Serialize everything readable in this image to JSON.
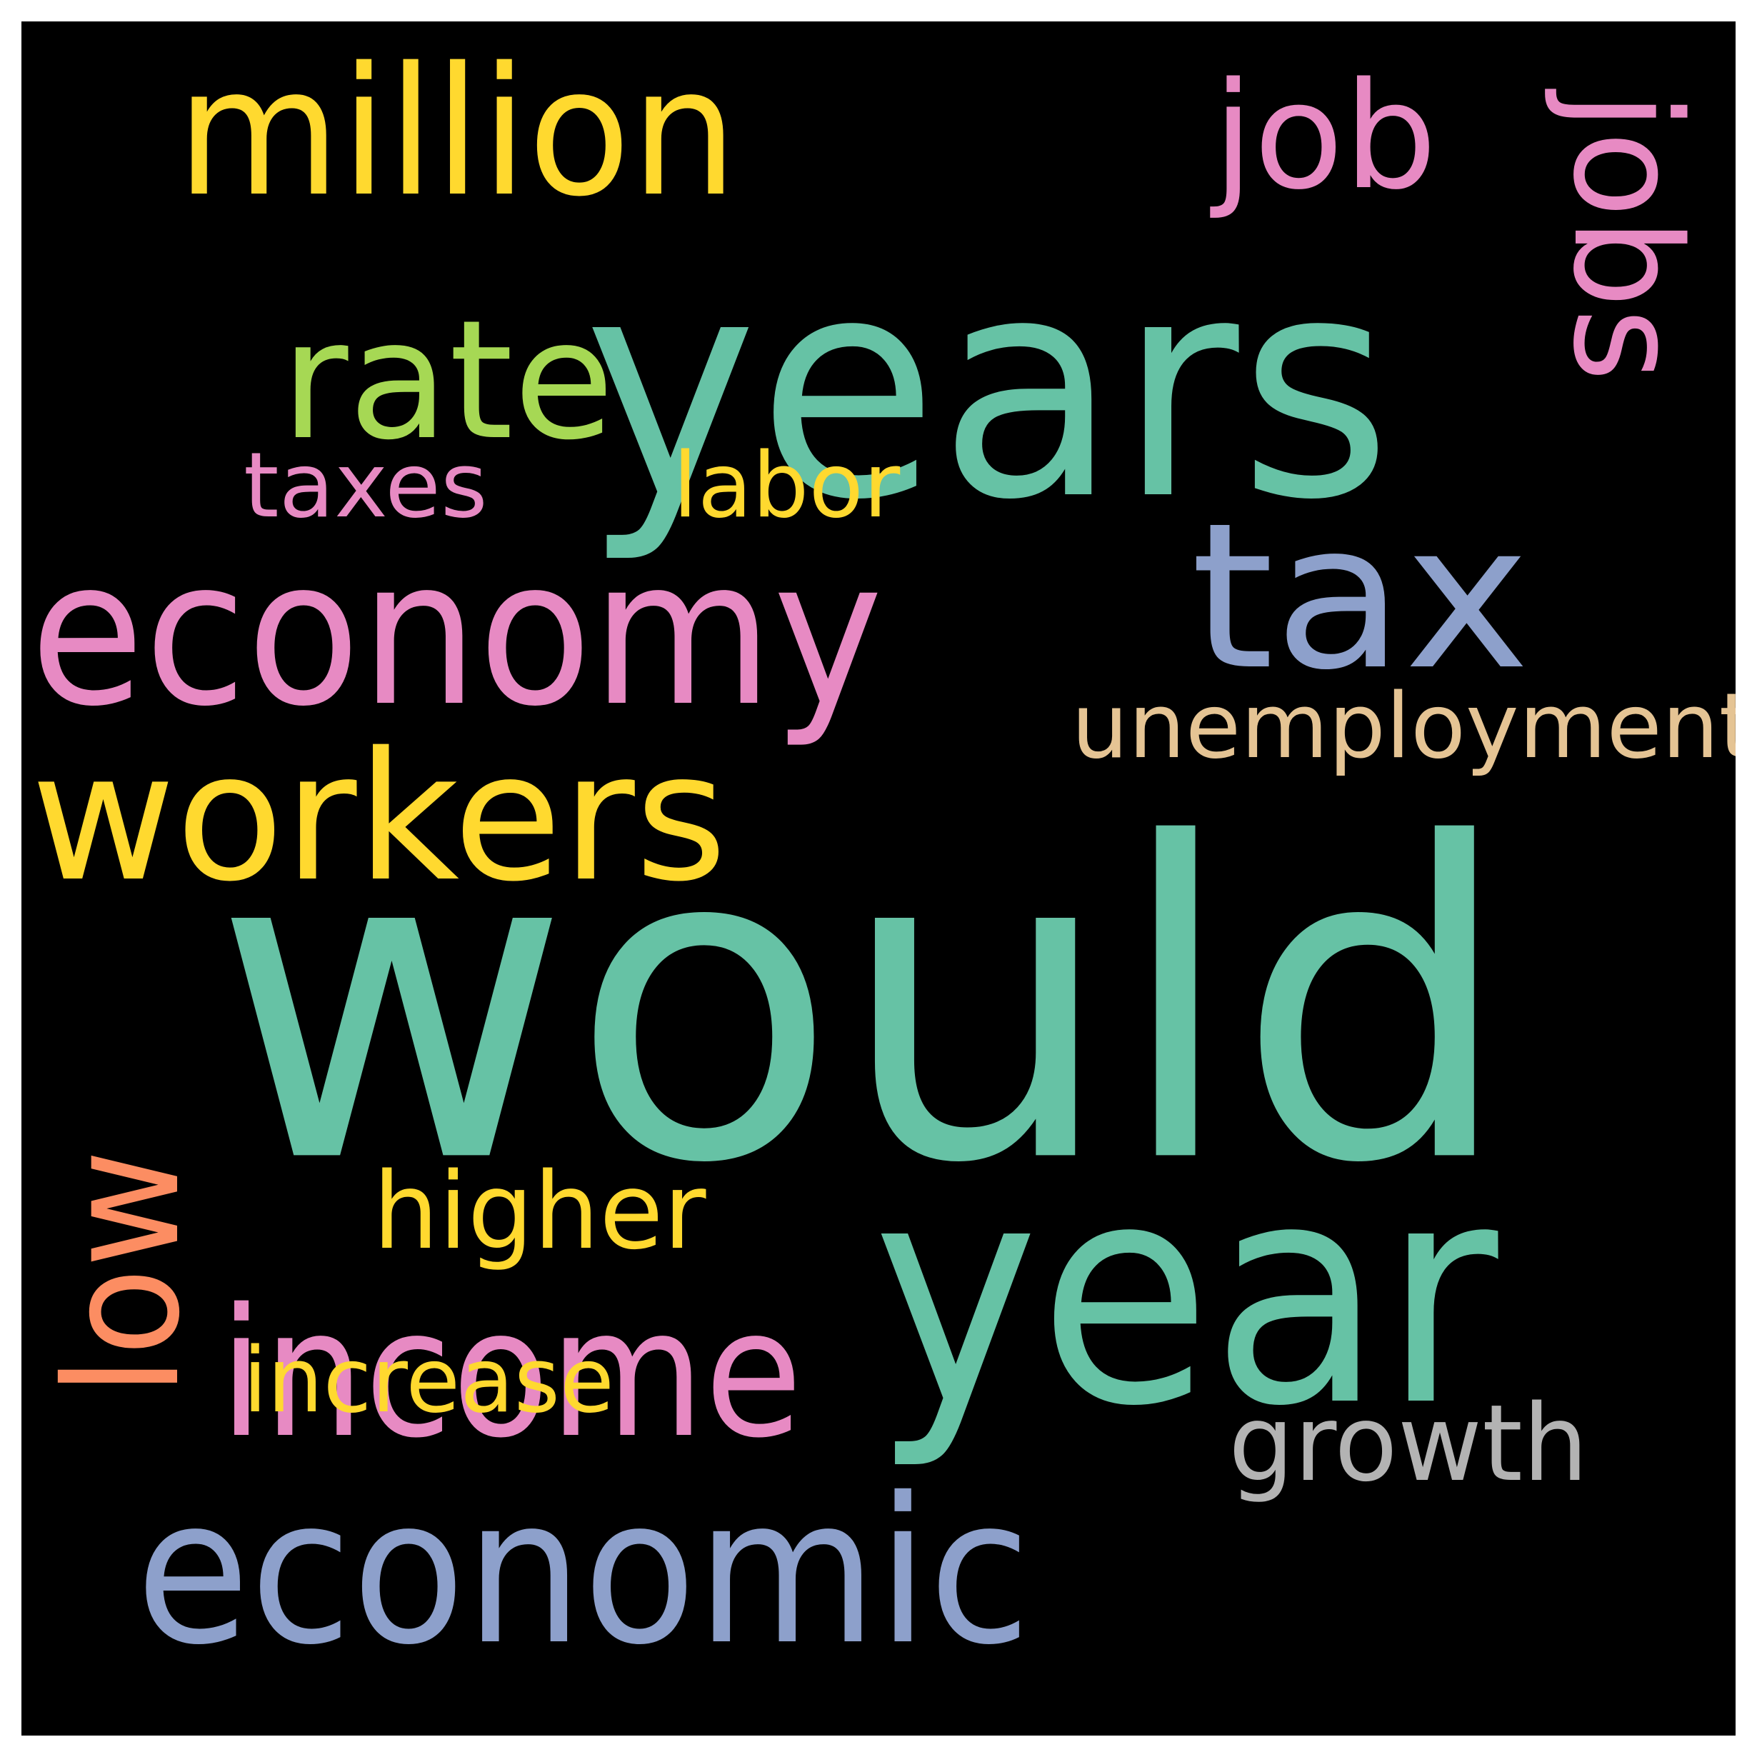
{
  "background_color": "#000000",
  "words": [
    {
      "text": "would",
      "color": "#66c2a5"
    },
    {
      "text": "years",
      "color": "#66c2a5"
    },
    {
      "text": "year",
      "color": "#66c2a5"
    },
    {
      "text": "economy",
      "color": "#e78ac3"
    },
    {
      "text": "economic",
      "color": "#8da0cb"
    },
    {
      "text": "tax",
      "color": "#8da0cb"
    },
    {
      "text": "workers",
      "color": "#ffd92f"
    },
    {
      "text": "million",
      "color": "#ffd92f"
    },
    {
      "text": "income",
      "color": "#e78ac3"
    },
    {
      "text": "rate",
      "color": "#a6d854"
    },
    {
      "text": "low",
      "color": "#fc8d62"
    },
    {
      "text": "job",
      "color": "#e78ac3"
    },
    {
      "text": "jobs",
      "color": "#e78ac3"
    },
    {
      "text": "higher",
      "color": "#ffd92f"
    },
    {
      "text": "unemployment",
      "color": "#e5c494"
    },
    {
      "text": "growth",
      "color": "#b3b3b3"
    },
    {
      "text": "increase",
      "color": "#ffd92f"
    },
    {
      "text": "labor",
      "color": "#ffd92f"
    },
    {
      "text": "taxes",
      "color": "#e78ac3"
    }
  ]
}
